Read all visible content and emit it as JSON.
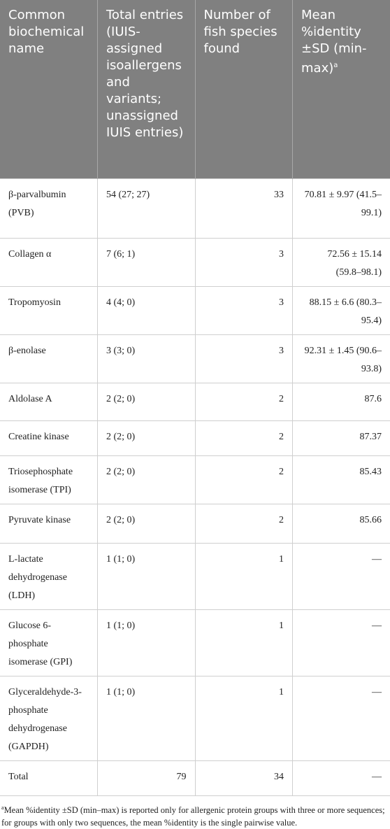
{
  "table": {
    "header": [
      "Common biochemical name",
      "Total entries (IUIS-assigned isoallergens and variants; unassigned IUIS entries)",
      "Number of fish species found",
      "Mean %identity ±SD (min-max)"
    ],
    "header_sup": "a",
    "rows": [
      [
        "β-parvalbumin (PVB)",
        "54 (27; 27)",
        "33",
        "70.81 ± 9.97 (41.5–99.1)"
      ],
      [
        "Collagen α",
        "7 (6; 1)",
        "3",
        "72.56 ± 15.14 (59.8–98.1)"
      ],
      [
        "Tropomyosin",
        "4 (4; 0)",
        "3",
        "88.15 ± 6.6 (80.3–95.4)"
      ],
      [
        "β-enolase",
        "3 (3; 0)",
        "3",
        "92.31 ± 1.45 (90.6–93.8)"
      ],
      [
        "Aldolase A",
        "2 (2; 0)",
        "2",
        "87.6"
      ],
      [
        "Creatine kinase",
        "2 (2; 0)",
        "2",
        "87.37"
      ],
      [
        "Triosephosphate isomerase (TPI)",
        "2 (2; 0)",
        "2",
        "85.43"
      ],
      [
        "Pyruvate kinase",
        "2 (2; 0)",
        "2",
        "85.66"
      ],
      [
        "L-lactate dehydrogenase (LDH)",
        "1 (1; 0)",
        "1",
        "—"
      ],
      [
        "Glucose 6-phosphate isomerase (GPI)",
        "1 (1; 0)",
        "1",
        "—"
      ],
      [
        "Glyceraldehyde-3-phosphate dehydrogenase (GAPDH)",
        "1 (1; 0)",
        "1",
        "—"
      ],
      [
        "Total",
        "79",
        "34",
        "—"
      ]
    ]
  },
  "footnote": {
    "marker": "a",
    "text": "Mean %identity ±SD (min–max) is reported only for allergenic protein groups with three or more sequences; for groups with only two sequences, the mean %identity is the single pairwise value."
  }
}
